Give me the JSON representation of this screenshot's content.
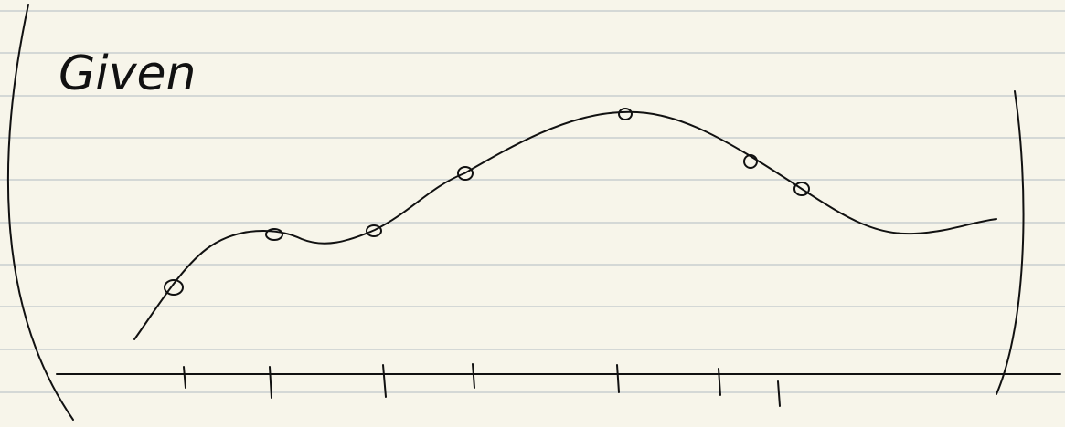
{
  "note": {
    "text": "Given"
  }
}
